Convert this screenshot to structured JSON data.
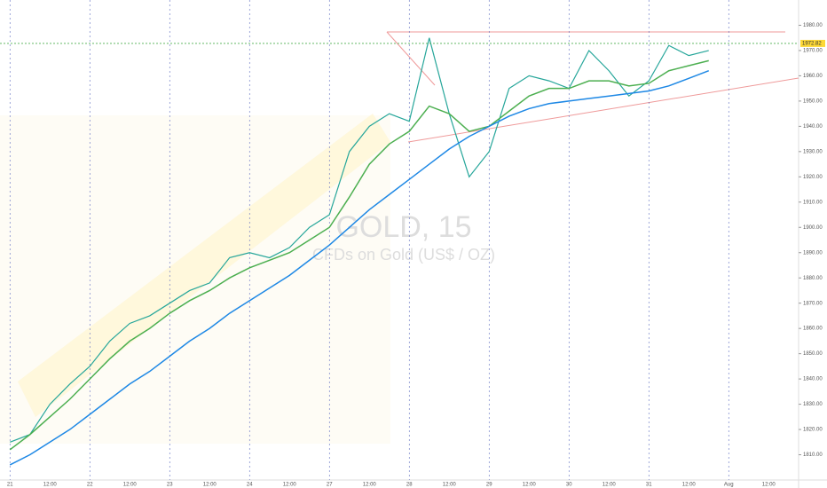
{
  "chart_data": {
    "type": "line",
    "title": "GOLD, 15",
    "subtitle": "CFDs on Gold (US$ / OZ)",
    "categories": [
      "21",
      null,
      "12:00",
      null,
      "22",
      null,
      "12:00",
      null,
      "23",
      null,
      "12:00",
      null,
      "24",
      null,
      "12:00",
      null,
      "27",
      null,
      "12:00",
      null,
      "28",
      null,
      "12:00",
      null,
      "29",
      null,
      "12:00",
      null,
      "30",
      null,
      "12:00",
      null,
      "31",
      null,
      "12:00",
      null,
      "Aug",
      null,
      "12:00",
      null
    ],
    "series": [
      {
        "color": "#26a69a",
        "values": [
          1815,
          1818,
          1830,
          1838,
          1845,
          1855,
          1862,
          1865,
          1870,
          1875,
          1878,
          1888,
          1890,
          1888,
          1892,
          1900,
          1905,
          1930,
          1940,
          1945,
          1942,
          1975,
          1945,
          1920,
          1930,
          1955,
          1960,
          1958,
          1955,
          1970,
          1962,
          1952,
          1958,
          1972,
          1968,
          1970,
          null,
          null,
          null,
          null
        ]
      },
      {
        "color": "#4caf50",
        "values": [
          1812,
          1818,
          1825,
          1832,
          1840,
          1848,
          1855,
          1860,
          1866,
          1871,
          1875,
          1880,
          1884,
          1887,
          1890,
          1895,
          1900,
          1912,
          1925,
          1933,
          1938,
          1948,
          1945,
          1938,
          1940,
          1946,
          1952,
          1955,
          1955,
          1958,
          1958,
          1956,
          1957,
          1962,
          1964,
          1966,
          null,
          null,
          null,
          null
        ]
      },
      {
        "color": "#1e88e5",
        "values": [
          1806,
          1810,
          1815,
          1820,
          1826,
          1832,
          1838,
          1843,
          1849,
          1855,
          1860,
          1866,
          1871,
          1876,
          1881,
          1887,
          1893,
          1900,
          1907,
          1913,
          1919,
          1925,
          1931,
          1936,
          1940,
          1944,
          1947,
          1949,
          1950,
          1951,
          1952,
          1953,
          1954,
          1956,
          1959,
          1962,
          null,
          null,
          null,
          null
        ]
      }
    ],
    "last_price": 1972.82,
    "ylim": [
      1800,
      1990
    ],
    "yticks": [
      {
        "value": 1810,
        "label": "1810.00"
      },
      {
        "value": 1820,
        "label": "1820.00"
      },
      {
        "value": 1830,
        "label": "1830.00"
      },
      {
        "value": 1840,
        "label": "1840.00"
      },
      {
        "value": 1850,
        "label": "1850.00"
      },
      {
        "value": 1860,
        "label": "1860.00"
      },
      {
        "value": 1870,
        "label": "1870.00"
      },
      {
        "value": 1880,
        "label": "1880.00"
      },
      {
        "value": 1890,
        "label": "1890.00"
      },
      {
        "value": 1900,
        "label": "1900.00"
      },
      {
        "value": 1910,
        "label": "1910.00"
      },
      {
        "value": 1920,
        "label": "1920.00"
      },
      {
        "value": 1930,
        "label": "1930.00"
      },
      {
        "value": 1940,
        "label": "1940.00"
      },
      {
        "value": 1950,
        "label": "1950.00"
      },
      {
        "value": 1960,
        "label": "1960.00"
      },
      {
        "value": 1970,
        "label": "1970.00"
      },
      {
        "value": 1980,
        "label": "1980.00"
      }
    ]
  }
}
